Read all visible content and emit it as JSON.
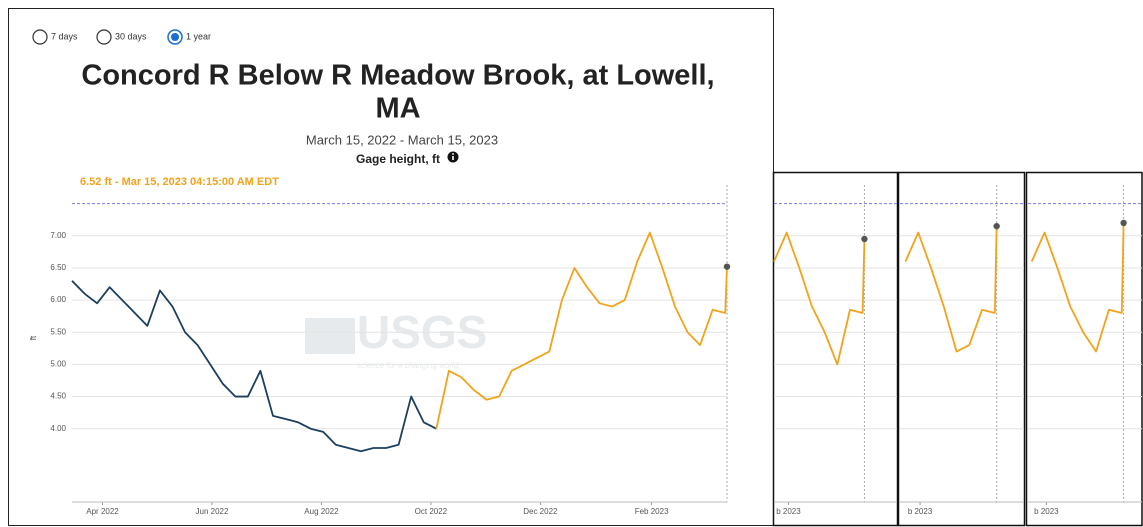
{
  "chart_data": [
    {
      "type": "line",
      "period_options": [
        "7 days",
        "30 days",
        "1 year"
      ],
      "selected_period": 2,
      "title": [
        "Concord R Below R Meadow Brook, at Lowell,",
        "MA"
      ],
      "subtitle": "March 15, 2022 - March 15, 2023",
      "y_title": "Gage height, ft",
      "annotation": "6.52 ft - Mar 15, 2023 04:15:00 AM EDT",
      "watermark": "USGS",
      "watermark_tagline": "science for a changing world",
      "ylabel": "ft",
      "x": [
        "2022-03-15",
        "2022-03-22",
        "2022-03-29",
        "2022-04-05",
        "2022-04-12",
        "2022-04-19",
        "2022-04-26",
        "2022-05-03",
        "2022-05-10",
        "2022-05-17",
        "2022-05-24",
        "2022-05-31",
        "2022-06-07",
        "2022-06-14",
        "2022-06-21",
        "2022-06-28",
        "2022-07-05",
        "2022-07-12",
        "2022-07-19",
        "2022-07-26",
        "2022-08-02",
        "2022-08-09",
        "2022-08-16",
        "2022-08-23",
        "2022-08-30",
        "2022-09-06",
        "2022-09-13",
        "2022-09-20",
        "2022-09-27",
        "2022-10-04",
        "2022-10-11",
        "2022-10-18",
        "2022-10-25",
        "2022-11-01",
        "2022-11-08",
        "2022-11-15",
        "2022-11-22",
        "2022-11-29",
        "2022-12-06",
        "2022-12-13",
        "2022-12-20",
        "2022-12-27",
        "2023-01-03",
        "2023-01-10",
        "2023-01-17",
        "2023-01-24",
        "2023-01-31",
        "2023-02-07",
        "2023-02-14",
        "2023-02-21",
        "2023-02-28",
        "2023-03-07",
        "2023-03-14",
        "2023-03-15"
      ],
      "series": [
        {
          "color": "#1d3f5e",
          "values": [
            6.3,
            6.1,
            5.95,
            6.2,
            6.0,
            5.8,
            5.6,
            6.15,
            5.9,
            5.5,
            5.3,
            5.0,
            4.7,
            4.5,
            4.5,
            4.9,
            4.2,
            4.15,
            4.1,
            4.0,
            3.95,
            3.75,
            3.7,
            3.65,
            3.7,
            3.7,
            3.75,
            4.5,
            4.1,
            4.0,
            null,
            null,
            null,
            null,
            null,
            null,
            null,
            null,
            null,
            null,
            null,
            null,
            null,
            null,
            null,
            null,
            null,
            null,
            null,
            null,
            null,
            null,
            null,
            null
          ]
        },
        {
          "color": "#f2a31c",
          "values": [
            null,
            null,
            null,
            null,
            null,
            null,
            null,
            null,
            null,
            null,
            null,
            null,
            null,
            null,
            null,
            null,
            null,
            null,
            null,
            null,
            null,
            null,
            null,
            null,
            null,
            null,
            null,
            null,
            null,
            4.0,
            4.9,
            4.8,
            4.6,
            4.45,
            4.5,
            4.9,
            5.0,
            5.1,
            5.2,
            6.0,
            6.5,
            6.2,
            5.95,
            5.9,
            6.0,
            6.6,
            7.05,
            6.5,
            5.9,
            5.5,
            5.3,
            5.85,
            5.8,
            6.52
          ]
        }
      ],
      "marker_color": "#555555",
      "reference_line": 7.5,
      "grid": true,
      "xlim": [
        "2022-03-15",
        "2023-03-15"
      ],
      "xticks": [
        {
          "value": "2022-04-01",
          "label": "Apr 2022"
        },
        {
          "value": "2022-06-01",
          "label": "Jun 2022"
        },
        {
          "value": "2022-08-01",
          "label": "Aug 2022"
        },
        {
          "value": "2022-10-01",
          "label": "Oct 2022"
        },
        {
          "value": "2022-12-01",
          "label": "Dec 2022"
        },
        {
          "value": "2023-02-01",
          "label": "Feb 2023"
        }
      ],
      "ylim": [
        2.86,
        7.79
      ],
      "yticks": [
        {
          "value": 4,
          "label": "4.00"
        },
        {
          "value": 4.5,
          "label": "4.50"
        },
        {
          "value": 5,
          "label": "5.00"
        },
        {
          "value": 5.5,
          "label": "5.50"
        },
        {
          "value": 6,
          "label": "6.00"
        },
        {
          "value": 6.5,
          "label": "6.50"
        },
        {
          "value": 7,
          "label": "7.00"
        }
      ]
    },
    {
      "type": "line",
      "x": [
        "2023-01-24",
        "2023-01-31",
        "2023-02-07",
        "2023-02-14",
        "2023-02-21",
        "2023-02-28",
        "2023-03-07",
        "2023-03-14",
        "2023-03-15"
      ],
      "series": [
        {
          "color": "#f2a31c",
          "values": [
            6.6,
            7.05,
            6.5,
            5.9,
            5.5,
            5.0,
            5.85,
            5.8,
            6.95
          ]
        }
      ],
      "marker_color": "#555555",
      "reference_line": 7.5,
      "grid": true,
      "xlim": [
        "2023-01-24",
        "2023-04-02"
      ],
      "xticks": [
        {
          "value": "2023-02-01",
          "label": "b 2023"
        }
      ],
      "ylim": [
        2.86,
        7.79
      ],
      "yticks": [
        4,
        4.5,
        5,
        5.5,
        6,
        6.5,
        7
      ]
    },
    {
      "type": "line",
      "x": [
        "2023-01-24",
        "2023-01-31",
        "2023-02-07",
        "2023-02-14",
        "2023-02-21",
        "2023-02-28",
        "2023-03-07",
        "2023-03-14",
        "2023-03-15"
      ],
      "series": [
        {
          "color": "#f2a31c",
          "values": [
            6.6,
            7.05,
            6.5,
            5.9,
            5.2,
            5.3,
            5.85,
            5.8,
            7.15
          ]
        }
      ],
      "marker_color": "#555555",
      "reference_line": 7.5,
      "grid": true,
      "xlim": [
        "2023-01-21",
        "2023-03-30"
      ],
      "xticks": [
        {
          "value": "2023-02-01",
          "label": "b 2023"
        }
      ],
      "ylim": [
        2.86,
        7.79
      ],
      "yticks": [
        4,
        4.5,
        5,
        5.5,
        6,
        6.5,
        7
      ]
    },
    {
      "type": "line",
      "x": [
        "2023-01-24",
        "2023-01-31",
        "2023-02-07",
        "2023-02-14",
        "2023-02-21",
        "2023-02-28",
        "2023-03-07",
        "2023-03-14",
        "2023-03-15"
      ],
      "series": [
        {
          "color": "#f2a31c",
          "values": [
            6.6,
            7.05,
            6.5,
            5.9,
            5.5,
            5.2,
            5.85,
            5.8,
            7.2
          ]
        }
      ],
      "marker_color": "#555555",
      "reference_line": 7.5,
      "grid": true,
      "xlim": [
        "2023-01-22",
        "2023-03-25"
      ],
      "xticks": [
        {
          "value": "2023-02-01",
          "label": "b 2023"
        }
      ],
      "ylim": [
        2.86,
        7.79
      ],
      "yticks": [
        4,
        4.5,
        5,
        5.5,
        6,
        6.5,
        7
      ]
    }
  ]
}
